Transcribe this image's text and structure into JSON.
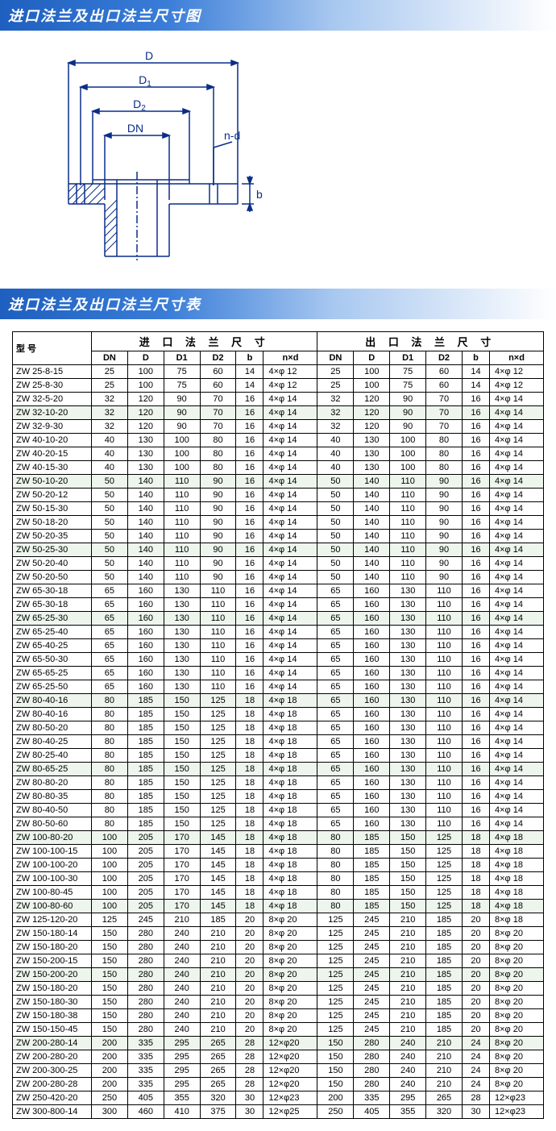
{
  "section1_title": "进口法兰及出口法兰尺寸图",
  "section2_title": "进口法兰及出口法兰尺寸表",
  "diagram": {
    "labels": {
      "D": "D",
      "D1": "D1",
      "D2": "D2",
      "DN": "DN",
      "nd": "n-d",
      "b": "b"
    },
    "stroke": "#0a2d8a",
    "stroke_width": 1.5
  },
  "table": {
    "header_model": "型 号",
    "group_inlet": "进 口 法 兰 尺 寸",
    "group_outlet": "出 口 法 兰 尺 寸",
    "cols": [
      "DN",
      "D",
      "D1",
      "D2",
      "b",
      "n×d"
    ],
    "rows": [
      {
        "m": "ZW 25-8-15",
        "in": [
          "25",
          "100",
          "75",
          "60",
          "14",
          "4×φ 12"
        ],
        "out": [
          "25",
          "100",
          "75",
          "60",
          "14",
          "4×φ 12"
        ]
      },
      {
        "m": "ZW 25-8-30",
        "in": [
          "25",
          "100",
          "75",
          "60",
          "14",
          "4×φ 12"
        ],
        "out": [
          "25",
          "100",
          "75",
          "60",
          "14",
          "4×φ 12"
        ]
      },
      {
        "m": "ZW 32-5-20",
        "in": [
          "32",
          "120",
          "90",
          "70",
          "16",
          "4×φ 14"
        ],
        "out": [
          "32",
          "120",
          "90",
          "70",
          "16",
          "4×φ 14"
        ]
      },
      {
        "m": "ZW 32-10-20",
        "in": [
          "32",
          "120",
          "90",
          "70",
          "16",
          "4×φ 14"
        ],
        "out": [
          "32",
          "120",
          "90",
          "70",
          "16",
          "4×φ 14"
        ],
        "s": true
      },
      {
        "m": "ZW 32-9-30",
        "in": [
          "32",
          "120",
          "90",
          "70",
          "16",
          "4×φ 14"
        ],
        "out": [
          "32",
          "120",
          "90",
          "70",
          "16",
          "4×φ 14"
        ]
      },
      {
        "m": "ZW 40-10-20",
        "in": [
          "40",
          "130",
          "100",
          "80",
          "16",
          "4×φ 14"
        ],
        "out": [
          "40",
          "130",
          "100",
          "80",
          "16",
          "4×φ 14"
        ]
      },
      {
        "m": "ZW 40-20-15",
        "in": [
          "40",
          "130",
          "100",
          "80",
          "16",
          "4×φ 14"
        ],
        "out": [
          "40",
          "130",
          "100",
          "80",
          "16",
          "4×φ 14"
        ]
      },
      {
        "m": "ZW 40-15-30",
        "in": [
          "40",
          "130",
          "100",
          "80",
          "16",
          "4×φ 14"
        ],
        "out": [
          "40",
          "130",
          "100",
          "80",
          "16",
          "4×φ 14"
        ]
      },
      {
        "m": "ZW 50-10-20",
        "in": [
          "50",
          "140",
          "110",
          "90",
          "16",
          "4×φ 14"
        ],
        "out": [
          "50",
          "140",
          "110",
          "90",
          "16",
          "4×φ 14"
        ],
        "s": true
      },
      {
        "m": "ZW 50-20-12",
        "in": [
          "50",
          "140",
          "110",
          "90",
          "16",
          "4×φ 14"
        ],
        "out": [
          "50",
          "140",
          "110",
          "90",
          "16",
          "4×φ 14"
        ]
      },
      {
        "m": "ZW 50-15-30",
        "in": [
          "50",
          "140",
          "110",
          "90",
          "16",
          "4×φ 14"
        ],
        "out": [
          "50",
          "140",
          "110",
          "90",
          "16",
          "4×φ 14"
        ]
      },
      {
        "m": "ZW 50-18-20",
        "in": [
          "50",
          "140",
          "110",
          "90",
          "16",
          "4×φ 14"
        ],
        "out": [
          "50",
          "140",
          "110",
          "90",
          "16",
          "4×φ 14"
        ]
      },
      {
        "m": "ZW 50-20-35",
        "in": [
          "50",
          "140",
          "110",
          "90",
          "16",
          "4×φ 14"
        ],
        "out": [
          "50",
          "140",
          "110",
          "90",
          "16",
          "4×φ 14"
        ]
      },
      {
        "m": "ZW 50-25-30",
        "in": [
          "50",
          "140",
          "110",
          "90",
          "16",
          "4×φ 14"
        ],
        "out": [
          "50",
          "140",
          "110",
          "90",
          "16",
          "4×φ 14"
        ],
        "s": true
      },
      {
        "m": "ZW 50-20-40",
        "in": [
          "50",
          "140",
          "110",
          "90",
          "16",
          "4×φ 14"
        ],
        "out": [
          "50",
          "140",
          "110",
          "90",
          "16",
          "4×φ 14"
        ]
      },
      {
        "m": "ZW 50-20-50",
        "in": [
          "50",
          "140",
          "110",
          "90",
          "16",
          "4×φ 14"
        ],
        "out": [
          "50",
          "140",
          "110",
          "90",
          "16",
          "4×φ 14"
        ]
      },
      {
        "m": "ZW 65-30-18",
        "in": [
          "65",
          "160",
          "130",
          "110",
          "16",
          "4×φ 14"
        ],
        "out": [
          "65",
          "160",
          "130",
          "110",
          "16",
          "4×φ 14"
        ]
      },
      {
        "m": "ZW 65-30-18",
        "in": [
          "65",
          "160",
          "130",
          "110",
          "16",
          "4×φ 14"
        ],
        "out": [
          "65",
          "160",
          "130",
          "110",
          "16",
          "4×φ 14"
        ]
      },
      {
        "m": "ZW 65-25-30",
        "in": [
          "65",
          "160",
          "130",
          "110",
          "16",
          "4×φ 14"
        ],
        "out": [
          "65",
          "160",
          "130",
          "110",
          "16",
          "4×φ 14"
        ],
        "s": true
      },
      {
        "m": "ZW 65-25-40",
        "in": [
          "65",
          "160",
          "130",
          "110",
          "16",
          "4×φ 14"
        ],
        "out": [
          "65",
          "160",
          "130",
          "110",
          "16",
          "4×φ 14"
        ]
      },
      {
        "m": "ZW 65-40-25",
        "in": [
          "65",
          "160",
          "130",
          "110",
          "16",
          "4×φ 14"
        ],
        "out": [
          "65",
          "160",
          "130",
          "110",
          "16",
          "4×φ 14"
        ]
      },
      {
        "m": "ZW 65-50-30",
        "in": [
          "65",
          "160",
          "130",
          "110",
          "16",
          "4×φ 14"
        ],
        "out": [
          "65",
          "160",
          "130",
          "110",
          "16",
          "4×φ 14"
        ]
      },
      {
        "m": "ZW 65-65-25",
        "in": [
          "65",
          "160",
          "130",
          "110",
          "16",
          "4×φ 14"
        ],
        "out": [
          "65",
          "160",
          "130",
          "110",
          "16",
          "4×φ 14"
        ]
      },
      {
        "m": "ZW 65-25-50",
        "in": [
          "65",
          "160",
          "130",
          "110",
          "16",
          "4×φ 14"
        ],
        "out": [
          "65",
          "160",
          "130",
          "110",
          "16",
          "4×φ 14"
        ]
      },
      {
        "m": "ZW 80-40-16",
        "in": [
          "80",
          "185",
          "150",
          "125",
          "18",
          "4×φ 18"
        ],
        "out": [
          "65",
          "160",
          "130",
          "110",
          "16",
          "4×φ 14"
        ],
        "s": true
      },
      {
        "m": "ZW 80-40-16",
        "in": [
          "80",
          "185",
          "150",
          "125",
          "18",
          "4×φ 18"
        ],
        "out": [
          "65",
          "160",
          "130",
          "110",
          "16",
          "4×φ 14"
        ]
      },
      {
        "m": "ZW 80-50-20",
        "in": [
          "80",
          "185",
          "150",
          "125",
          "18",
          "4×φ 18"
        ],
        "out": [
          "65",
          "160",
          "130",
          "110",
          "16",
          "4×φ 14"
        ]
      },
      {
        "m": "ZW 80-40-25",
        "in": [
          "80",
          "185",
          "150",
          "125",
          "18",
          "4×φ 18"
        ],
        "out": [
          "65",
          "160",
          "130",
          "110",
          "16",
          "4×φ 14"
        ]
      },
      {
        "m": "ZW 80-25-40",
        "in": [
          "80",
          "185",
          "150",
          "125",
          "18",
          "4×φ 18"
        ],
        "out": [
          "65",
          "160",
          "130",
          "110",
          "16",
          "4×φ 14"
        ]
      },
      {
        "m": "ZW 80-65-25",
        "in": [
          "80",
          "185",
          "150",
          "125",
          "18",
          "4×φ 18"
        ],
        "out": [
          "65",
          "160",
          "130",
          "110",
          "16",
          "4×φ 14"
        ],
        "s": true
      },
      {
        "m": "ZW 80-80-20",
        "in": [
          "80",
          "185",
          "150",
          "125",
          "18",
          "4×φ 18"
        ],
        "out": [
          "65",
          "160",
          "130",
          "110",
          "16",
          "4×φ 14"
        ]
      },
      {
        "m": "ZW 80-80-35",
        "in": [
          "80",
          "185",
          "150",
          "125",
          "18",
          "4×φ 18"
        ],
        "out": [
          "65",
          "160",
          "130",
          "110",
          "16",
          "4×φ 14"
        ]
      },
      {
        "m": "ZW 80-40-50",
        "in": [
          "80",
          "185",
          "150",
          "125",
          "18",
          "4×φ 18"
        ],
        "out": [
          "65",
          "160",
          "130",
          "110",
          "16",
          "4×φ 14"
        ]
      },
      {
        "m": "ZW 80-50-60",
        "in": [
          "80",
          "185",
          "150",
          "125",
          "18",
          "4×φ 18"
        ],
        "out": [
          "65",
          "160",
          "130",
          "110",
          "16",
          "4×φ 14"
        ]
      },
      {
        "m": "ZW 100-80-20",
        "in": [
          "100",
          "205",
          "170",
          "145",
          "18",
          "4×φ 18"
        ],
        "out": [
          "80",
          "185",
          "150",
          "125",
          "18",
          "4×φ 18"
        ],
        "s": true
      },
      {
        "m": "ZW 100-100-15",
        "in": [
          "100",
          "205",
          "170",
          "145",
          "18",
          "4×φ 18"
        ],
        "out": [
          "80",
          "185",
          "150",
          "125",
          "18",
          "4×φ 18"
        ]
      },
      {
        "m": "ZW 100-100-20",
        "in": [
          "100",
          "205",
          "170",
          "145",
          "18",
          "4×φ 18"
        ],
        "out": [
          "80",
          "185",
          "150",
          "125",
          "18",
          "4×φ 18"
        ]
      },
      {
        "m": "ZW 100-100-30",
        "in": [
          "100",
          "205",
          "170",
          "145",
          "18",
          "4×φ 18"
        ],
        "out": [
          "80",
          "185",
          "150",
          "125",
          "18",
          "4×φ 18"
        ]
      },
      {
        "m": "ZW 100-80-45",
        "in": [
          "100",
          "205",
          "170",
          "145",
          "18",
          "4×φ 18"
        ],
        "out": [
          "80",
          "185",
          "150",
          "125",
          "18",
          "4×φ 18"
        ]
      },
      {
        "m": "ZW 100-80-60",
        "in": [
          "100",
          "205",
          "170",
          "145",
          "18",
          "4×φ 18"
        ],
        "out": [
          "80",
          "185",
          "150",
          "125",
          "18",
          "4×φ 18"
        ],
        "s": true
      },
      {
        "m": "ZW 125-120-20",
        "in": [
          "125",
          "245",
          "210",
          "185",
          "20",
          "8×φ 20"
        ],
        "out": [
          "125",
          "245",
          "210",
          "185",
          "20",
          "8×φ 18"
        ]
      },
      {
        "m": "ZW 150-180-14",
        "in": [
          "150",
          "280",
          "240",
          "210",
          "20",
          "8×φ 20"
        ],
        "out": [
          "125",
          "245",
          "210",
          "185",
          "20",
          "8×φ 20"
        ]
      },
      {
        "m": "ZW 150-180-20",
        "in": [
          "150",
          "280",
          "240",
          "210",
          "20",
          "8×φ 20"
        ],
        "out": [
          "125",
          "245",
          "210",
          "185",
          "20",
          "8×φ 20"
        ]
      },
      {
        "m": "ZW 150-200-15",
        "in": [
          "150",
          "280",
          "240",
          "210",
          "20",
          "8×φ 20"
        ],
        "out": [
          "125",
          "245",
          "210",
          "185",
          "20",
          "8×φ 20"
        ]
      },
      {
        "m": "ZW 150-200-20",
        "in": [
          "150",
          "280",
          "240",
          "210",
          "20",
          "8×φ 20"
        ],
        "out": [
          "125",
          "245",
          "210",
          "185",
          "20",
          "8×φ 20"
        ],
        "s": true
      },
      {
        "m": "ZW 150-180-20",
        "in": [
          "150",
          "280",
          "240",
          "210",
          "20",
          "8×φ 20"
        ],
        "out": [
          "125",
          "245",
          "210",
          "185",
          "20",
          "8×φ 20"
        ]
      },
      {
        "m": "ZW 150-180-30",
        "in": [
          "150",
          "280",
          "240",
          "210",
          "20",
          "8×φ 20"
        ],
        "out": [
          "125",
          "245",
          "210",
          "185",
          "20",
          "8×φ 20"
        ]
      },
      {
        "m": "ZW 150-180-38",
        "in": [
          "150",
          "280",
          "240",
          "210",
          "20",
          "8×φ 20"
        ],
        "out": [
          "125",
          "245",
          "210",
          "185",
          "20",
          "8×φ 20"
        ]
      },
      {
        "m": "ZW 150-150-45",
        "in": [
          "150",
          "280",
          "240",
          "210",
          "20",
          "8×φ 20"
        ],
        "out": [
          "125",
          "245",
          "210",
          "185",
          "20",
          "8×φ 20"
        ]
      },
      {
        "m": "ZW 200-280-14",
        "in": [
          "200",
          "335",
          "295",
          "265",
          "28",
          "12×φ20"
        ],
        "out": [
          "150",
          "280",
          "240",
          "210",
          "24",
          "8×φ 20"
        ],
        "s": true
      },
      {
        "m": "ZW 200-280-20",
        "in": [
          "200",
          "335",
          "295",
          "265",
          "28",
          "12×φ20"
        ],
        "out": [
          "150",
          "280",
          "240",
          "210",
          "24",
          "8×φ 20"
        ]
      },
      {
        "m": "ZW 200-300-25",
        "in": [
          "200",
          "335",
          "295",
          "265",
          "28",
          "12×φ20"
        ],
        "out": [
          "150",
          "280",
          "240",
          "210",
          "24",
          "8×φ 20"
        ]
      },
      {
        "m": "ZW 200-280-28",
        "in": [
          "200",
          "335",
          "295",
          "265",
          "28",
          "12×φ20"
        ],
        "out": [
          "150",
          "280",
          "240",
          "210",
          "24",
          "8×φ 20"
        ]
      },
      {
        "m": "ZW 250-420-20",
        "in": [
          "250",
          "405",
          "355",
          "320",
          "30",
          "12×φ23"
        ],
        "out": [
          "200",
          "335",
          "295",
          "265",
          "28",
          "12×φ23"
        ]
      },
      {
        "m": "ZW 300-800-14",
        "in": [
          "300",
          "460",
          "410",
          "375",
          "30",
          "12×φ25"
        ],
        "out": [
          "250",
          "405",
          "355",
          "320",
          "30",
          "12×φ23"
        ]
      }
    ]
  }
}
